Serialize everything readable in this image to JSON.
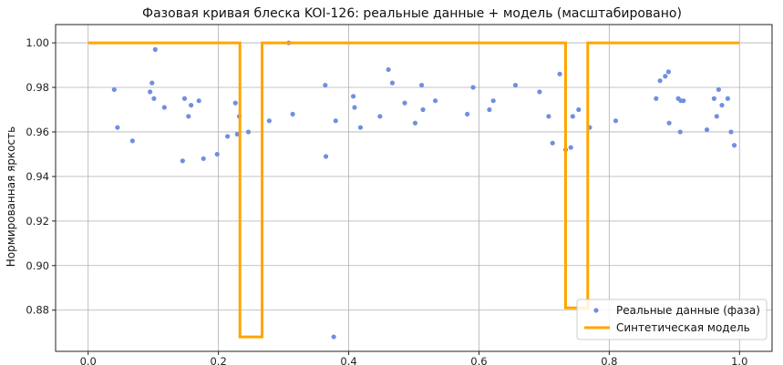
{
  "chart_data": {
    "type": "scatter",
    "title": "Фазовая кривая блеска KOI-126: реальные данные + модель (масштабировано)",
    "xlabel": "",
    "ylabel": "Нормированная яркость",
    "xlim": [
      -0.05,
      1.05
    ],
    "ylim": [
      0.8615,
      1.0082
    ],
    "xticks": [
      0.0,
      0.2,
      0.4,
      0.6,
      0.8,
      1.0
    ],
    "xtick_labels": [
      "0.0",
      "0.2",
      "0.4",
      "0.6",
      "0.8",
      "1.0"
    ],
    "yticks": [
      0.88,
      0.9,
      0.92,
      0.94,
      0.96,
      0.98,
      1.0
    ],
    "ytick_labels": [
      "0.88",
      "0.90",
      "0.92",
      "0.94",
      "0.96",
      "0.98",
      "1.00"
    ],
    "grid": true,
    "legend_position": "lower-right",
    "series": [
      {
        "name": "Реальные данные (фаза)",
        "kind": "scatter",
        "color": "#6f8fe0",
        "points": [
          [
            0.04,
            0.979
          ],
          [
            0.045,
            0.962
          ],
          [
            0.068,
            0.956
          ],
          [
            0.095,
            0.978
          ],
          [
            0.098,
            0.982
          ],
          [
            0.101,
            0.975
          ],
          [
            0.103,
            0.997
          ],
          [
            0.117,
            0.971
          ],
          [
            0.145,
            0.947
          ],
          [
            0.148,
            0.975
          ],
          [
            0.154,
            0.967
          ],
          [
            0.158,
            0.972
          ],
          [
            0.17,
            0.974
          ],
          [
            0.177,
            0.948
          ],
          [
            0.198,
            0.95
          ],
          [
            0.214,
            0.958
          ],
          [
            0.226,
            0.973
          ],
          [
            0.229,
            0.959
          ],
          [
            0.232,
            0.967
          ],
          [
            0.246,
            0.96
          ],
          [
            0.278,
            0.965
          ],
          [
            0.308,
            1.0
          ],
          [
            0.314,
            0.968
          ],
          [
            0.364,
            0.981
          ],
          [
            0.365,
            0.949
          ],
          [
            0.377,
            0.868
          ],
          [
            0.38,
            0.965
          ],
          [
            0.407,
            0.976
          ],
          [
            0.409,
            0.971
          ],
          [
            0.418,
            0.962
          ],
          [
            0.448,
            0.967
          ],
          [
            0.461,
            0.988
          ],
          [
            0.467,
            0.982
          ],
          [
            0.486,
            0.973
          ],
          [
            0.502,
            0.964
          ],
          [
            0.512,
            0.981
          ],
          [
            0.514,
            0.97
          ],
          [
            0.533,
            0.974
          ],
          [
            0.582,
            0.968
          ],
          [
            0.591,
            0.98
          ],
          [
            0.616,
            0.97
          ],
          [
            0.622,
            0.974
          ],
          [
            0.656,
            0.981
          ],
          [
            0.693,
            0.978
          ],
          [
            0.707,
            0.967
          ],
          [
            0.713,
            0.955
          ],
          [
            0.724,
            0.986
          ],
          [
            0.733,
            0.952
          ],
          [
            0.741,
            0.953
          ],
          [
            0.744,
            0.967
          ],
          [
            0.753,
            0.97
          ],
          [
            0.77,
            0.962
          ],
          [
            0.81,
            0.965
          ],
          [
            0.872,
            0.975
          ],
          [
            0.878,
            0.983
          ],
          [
            0.886,
            0.985
          ],
          [
            0.891,
            0.987
          ],
          [
            0.892,
            0.964
          ],
          [
            0.906,
            0.975
          ],
          [
            0.909,
            0.96
          ],
          [
            0.91,
            0.974
          ],
          [
            0.914,
            0.974
          ],
          [
            0.95,
            0.961
          ],
          [
            0.961,
            0.975
          ],
          [
            0.965,
            0.967
          ],
          [
            0.968,
            0.979
          ],
          [
            0.973,
            0.972
          ],
          [
            0.982,
            0.975
          ],
          [
            0.987,
            0.96
          ],
          [
            0.992,
            0.954
          ]
        ]
      },
      {
        "name": "Синтетическая модель",
        "kind": "line",
        "color": "#ffa500",
        "points": [
          [
            0.0,
            1.0
          ],
          [
            0.233,
            1.0
          ],
          [
            0.233,
            0.868
          ],
          [
            0.267,
            0.868
          ],
          [
            0.267,
            1.0
          ],
          [
            0.733,
            1.0
          ],
          [
            0.733,
            0.881
          ],
          [
            0.767,
            0.881
          ],
          [
            0.767,
            1.0
          ],
          [
            1.0,
            1.0
          ]
        ]
      }
    ]
  }
}
